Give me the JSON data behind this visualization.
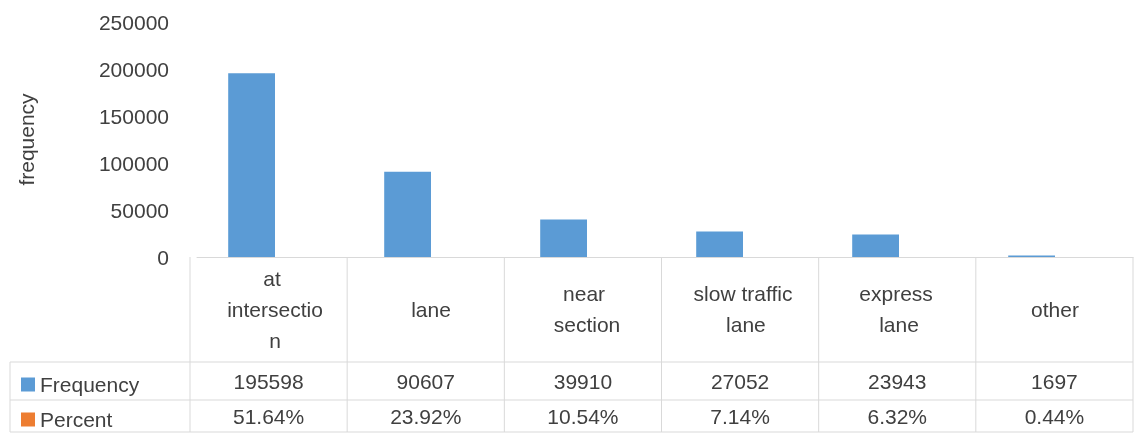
{
  "chart_data": {
    "type": "bar",
    "ylabel": "frequency",
    "categories": [
      "at intersection",
      "lane",
      "near section",
      "slow traffic lane",
      "express lane",
      "other"
    ],
    "series": [
      {
        "name": "Frequency",
        "color": "#5b9bd5",
        "values": [
          195598,
          90607,
          39910,
          27052,
          23943,
          1697
        ],
        "value_labels": [
          "195598",
          "90607",
          "39910",
          "27052",
          "23943",
          "1697"
        ]
      },
      {
        "name": "Percent",
        "color": "#ed7d31",
        "values": [
          51.64,
          23.92,
          10.54,
          7.14,
          6.32,
          0.44
        ],
        "value_labels": [
          "51.64%",
          "23.92%",
          "10.54%",
          "7.14%",
          "6.32%",
          "0.44%"
        ]
      }
    ],
    "ylim": [
      0,
      250000
    ],
    "yticks": [
      0,
      50000,
      100000,
      150000,
      200000,
      250000
    ],
    "grid": false,
    "legend": "bottom left"
  }
}
